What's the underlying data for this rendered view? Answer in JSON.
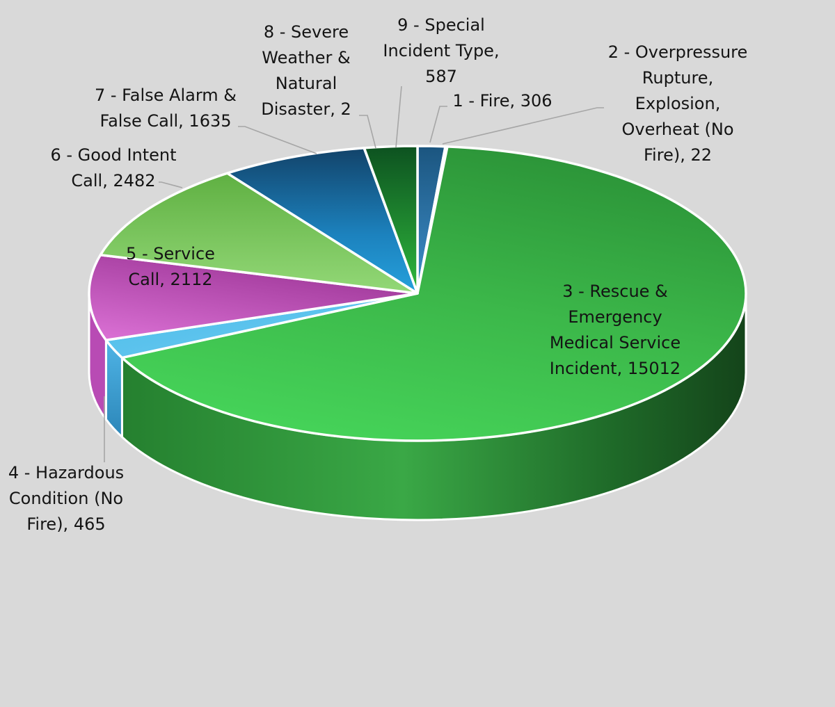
{
  "chart_data": {
    "type": "pie",
    "title": "",
    "three_d": true,
    "legend": "none",
    "background_color": "#d9d9d9",
    "slices": [
      {
        "category": "1 - Fire",
        "value": 306,
        "label": "1 - Fire, 306",
        "color": "#2e75b6"
      },
      {
        "category": "2 - Overpressure Rupture, Explosion, Overheat (No Fire)",
        "value": 22,
        "label": "2 - Overpressure Rupture, Explosion, Overheat (No Fire), 22",
        "color": "#1f4e79"
      },
      {
        "category": "3 - Rescue & Emergency Medical Service Incident",
        "value": 15012,
        "label": "3 - Rescue & Emergency Medical Service Incident, 15012",
        "color": "#3cb84a"
      },
      {
        "category": "4 - Hazardous Condition (No Fire)",
        "value": 465,
        "label": "4 - Hazardous Condition (No Fire), 465",
        "color": "#5bc0eb"
      },
      {
        "category": "5 - Service Call",
        "value": 2112,
        "label": "5 - Service Call, 2112",
        "color": "#b84bb4"
      },
      {
        "category": "6 - Good Intent Call",
        "value": 2482,
        "label": "6 - Good Intent Call, 2482",
        "color": "#7ec85a"
      },
      {
        "category": "7 - False Alarm & False Call",
        "value": 1635,
        "label": "7 - False Alarm & False Call, 1635",
        "color": "#1a75b5"
      },
      {
        "category": "8 - Severe Weather & Natural Disaster",
        "value": 2,
        "label": "8 - Severe Weather & Natural Disaster, 2",
        "color": "#0f6b2a"
      },
      {
        "category": "9 - Special Incident Type",
        "value": 587,
        "label": "9 - Special Incident Type, 587",
        "color": "#2aa637"
      }
    ]
  }
}
